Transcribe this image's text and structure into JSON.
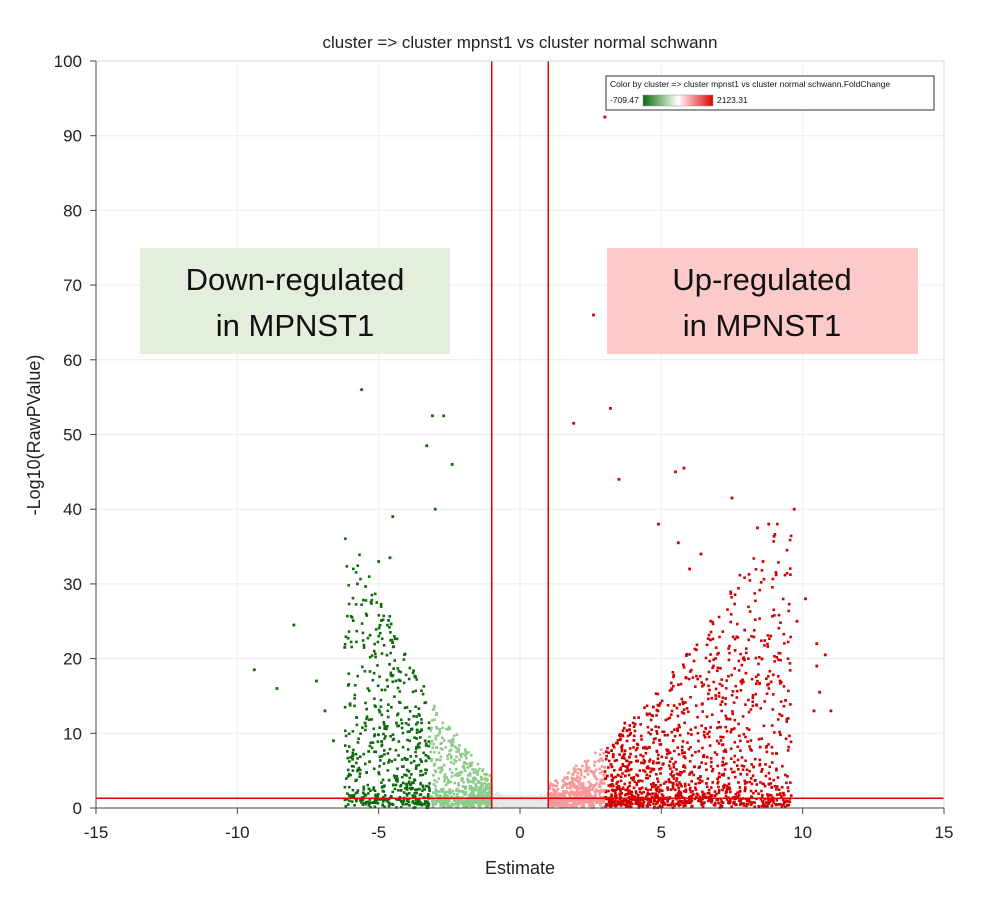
{
  "chart_data": {
    "type": "scatter",
    "title": "cluster => cluster mpnst1 vs cluster normal schwann",
    "xlabel": "Estimate",
    "ylabel": "-Log10(RawPValue)",
    "xlim": [
      -15,
      15
    ],
    "ylim": [
      0,
      100
    ],
    "xticks": [
      -15,
      -10,
      -5,
      0,
      5,
      10,
      15
    ],
    "yticks": [
      0,
      10,
      20,
      30,
      40,
      50,
      60,
      70,
      80,
      90,
      100
    ],
    "grid": true,
    "thresholds": {
      "vertical": [
        -1,
        1
      ],
      "horizontal": 1.3
    },
    "threshold_color": "#e00000",
    "legend": {
      "title": "Color by cluster => cluster mpnst1 vs cluster normal schwann.FoldChange",
      "min_label": "-709.47",
      "max_label": "2123.31",
      "position": "top-right",
      "gradient": [
        "#0a6e0a",
        "#ffffff",
        "#e00000"
      ]
    },
    "annotations": [
      {
        "text_lines": [
          "Down-regulated",
          "in MPNST1"
        ],
        "background": "#e3efdc",
        "region": "left"
      },
      {
        "text_lines": [
          "Up-regulated",
          "in MPNST1"
        ],
        "background": "#fdcaca",
        "region": "right"
      }
    ],
    "colors": {
      "down_strong": "#0b6b0b",
      "down_light": "#8fca8a",
      "up_strong": "#d00000",
      "up_light": "#f59a9a",
      "center": "#e8e8e8"
    },
    "outliers": [
      {
        "x": -9.4,
        "y": 18.5
      },
      {
        "x": -8.6,
        "y": 16
      },
      {
        "x": -8.0,
        "y": 24.5
      },
      {
        "x": -7.2,
        "y": 17
      },
      {
        "x": -6.9,
        "y": 13
      },
      {
        "x": -6.6,
        "y": 9
      },
      {
        "x": -6.2,
        "y": 21.5
      },
      {
        "x": -5.6,
        "y": 56
      },
      {
        "x": -5.0,
        "y": 33
      },
      {
        "x": -4.5,
        "y": 39
      },
      {
        "x": -4.6,
        "y": 33.5
      },
      {
        "x": -3.3,
        "y": 48.5
      },
      {
        "x": -3.1,
        "y": 52.5
      },
      {
        "x": -2.7,
        "y": 52.5
      },
      {
        "x": -2.4,
        "y": 46
      },
      {
        "x": -3.0,
        "y": 40
      },
      {
        "x": 1.9,
        "y": 51.5
      },
      {
        "x": 2.6,
        "y": 66
      },
      {
        "x": 3.0,
        "y": 92.5
      },
      {
        "x": 3.2,
        "y": 53.5
      },
      {
        "x": 3.5,
        "y": 44
      },
      {
        "x": 5.5,
        "y": 45
      },
      {
        "x": 5.8,
        "y": 45.5
      },
      {
        "x": 4.9,
        "y": 38
      },
      {
        "x": 5.6,
        "y": 35.5
      },
      {
        "x": 6.0,
        "y": 32
      },
      {
        "x": 6.4,
        "y": 34
      },
      {
        "x": 7.5,
        "y": 41.5
      },
      {
        "x": 8.4,
        "y": 37.5
      },
      {
        "x": 8.8,
        "y": 38
      },
      {
        "x": 9.7,
        "y": 40
      },
      {
        "x": 8.6,
        "y": 33
      },
      {
        "x": 10.1,
        "y": 28
      },
      {
        "x": 9.8,
        "y": 25
      },
      {
        "x": 10.5,
        "y": 22
      },
      {
        "x": 10.8,
        "y": 20.5
      },
      {
        "x": 10.5,
        "y": 19
      },
      {
        "x": 10.6,
        "y": 15.5
      },
      {
        "x": 10.4,
        "y": 13
      },
      {
        "x": 11.0,
        "y": 13
      },
      {
        "x": 9.2,
        "y": 17
      },
      {
        "x": 7.9,
        "y": 20
      }
    ]
  }
}
